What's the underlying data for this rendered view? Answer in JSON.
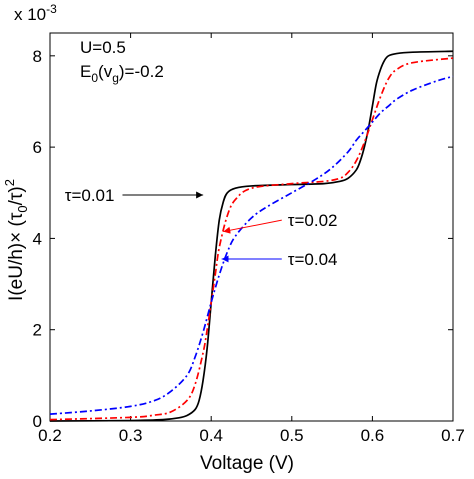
{
  "chart_data": {
    "type": "line",
    "title": "",
    "xlabel": "Voltage (V)",
    "ylabel": "I(eU/h)× (τ0/τ)2",
    "ylabel_parts": {
      "base": "I(eU/h)× (τ",
      "sub0": "0",
      "mid": "/τ)",
      "sup": "2"
    },
    "y_scale_factor": "x 10-3",
    "y_scale_parts": {
      "base": "x 10",
      "exp": "-3"
    },
    "xlim": [
      0.2,
      0.7
    ],
    "ylim": [
      0,
      8.5
    ],
    "x_ticks": [
      "0.2",
      "0.3",
      "0.4",
      "0.5",
      "0.6",
      "0.7"
    ],
    "y_ticks": [
      "0",
      "2",
      "4",
      "6",
      "8"
    ],
    "grid": false,
    "params": {
      "line1": "U=0.5",
      "line2_parts": {
        "a": "E",
        "sub": "0",
        "b": "(v",
        "sub2": "g",
        "c": ")=-0.2"
      }
    },
    "series": [
      {
        "name": "τ=0.01",
        "color": "#000000",
        "style": "solid",
        "x": [
          0.2,
          0.3,
          0.34,
          0.36,
          0.37,
          0.38,
          0.385,
          0.39,
          0.395,
          0.4,
          0.405,
          0.41,
          0.415,
          0.42,
          0.43,
          0.45,
          0.5,
          0.54,
          0.56,
          0.57,
          0.58,
          0.585,
          0.59,
          0.595,
          0.6,
          0.605,
          0.61,
          0.615,
          0.62,
          0.63,
          0.65,
          0.7
        ],
        "y": [
          0.0,
          0.01,
          0.03,
          0.07,
          0.12,
          0.25,
          0.45,
          0.9,
          1.6,
          2.6,
          3.6,
          4.4,
          4.8,
          5.0,
          5.1,
          5.15,
          5.18,
          5.2,
          5.25,
          5.32,
          5.5,
          5.7,
          6.0,
          6.4,
          6.9,
          7.4,
          7.7,
          7.9,
          8.0,
          8.05,
          8.08,
          8.1
        ]
      },
      {
        "name": "τ=0.02",
        "color": "#ff0000",
        "style": "dash-dot",
        "x": [
          0.2,
          0.3,
          0.33,
          0.35,
          0.37,
          0.38,
          0.39,
          0.395,
          0.4,
          0.405,
          0.41,
          0.42,
          0.43,
          0.45,
          0.5,
          0.54,
          0.56,
          0.57,
          0.58,
          0.59,
          0.6,
          0.61,
          0.62,
          0.63,
          0.65,
          0.7
        ],
        "y": [
          0.03,
          0.08,
          0.13,
          0.2,
          0.45,
          0.8,
          1.5,
          2.0,
          2.6,
          3.2,
          3.8,
          4.5,
          4.85,
          5.1,
          5.2,
          5.25,
          5.32,
          5.45,
          5.7,
          6.1,
          6.6,
          7.1,
          7.5,
          7.7,
          7.85,
          7.95
        ]
      },
      {
        "name": "τ=0.04",
        "color": "#0000ff",
        "style": "dash-dot",
        "x": [
          0.2,
          0.25,
          0.3,
          0.33,
          0.35,
          0.37,
          0.38,
          0.39,
          0.4,
          0.41,
          0.42,
          0.43,
          0.45,
          0.47,
          0.5,
          0.53,
          0.55,
          0.57,
          0.58,
          0.59,
          0.6,
          0.61,
          0.62,
          0.63,
          0.65,
          0.68,
          0.7
        ],
        "y": [
          0.15,
          0.22,
          0.32,
          0.45,
          0.65,
          1.0,
          1.4,
          1.95,
          2.6,
          3.2,
          3.7,
          4.05,
          4.45,
          4.7,
          5.0,
          5.3,
          5.55,
          5.9,
          6.15,
          6.35,
          6.55,
          6.75,
          6.9,
          7.05,
          7.25,
          7.45,
          7.55
        ]
      }
    ],
    "annotations": [
      {
        "text": "τ=0.01",
        "series": 0,
        "label_at": [
          0.28,
          4.95
        ],
        "arrow_to": [
          0.39,
          4.95
        ]
      },
      {
        "text": "τ=0.02",
        "series": 1,
        "label_at": [
          0.495,
          4.4
        ],
        "arrow_to": [
          0.415,
          4.15
        ]
      },
      {
        "text": "τ=0.04",
        "series": 2,
        "label_at": [
          0.495,
          3.55
        ],
        "arrow_to": [
          0.413,
          3.55
        ]
      }
    ]
  }
}
